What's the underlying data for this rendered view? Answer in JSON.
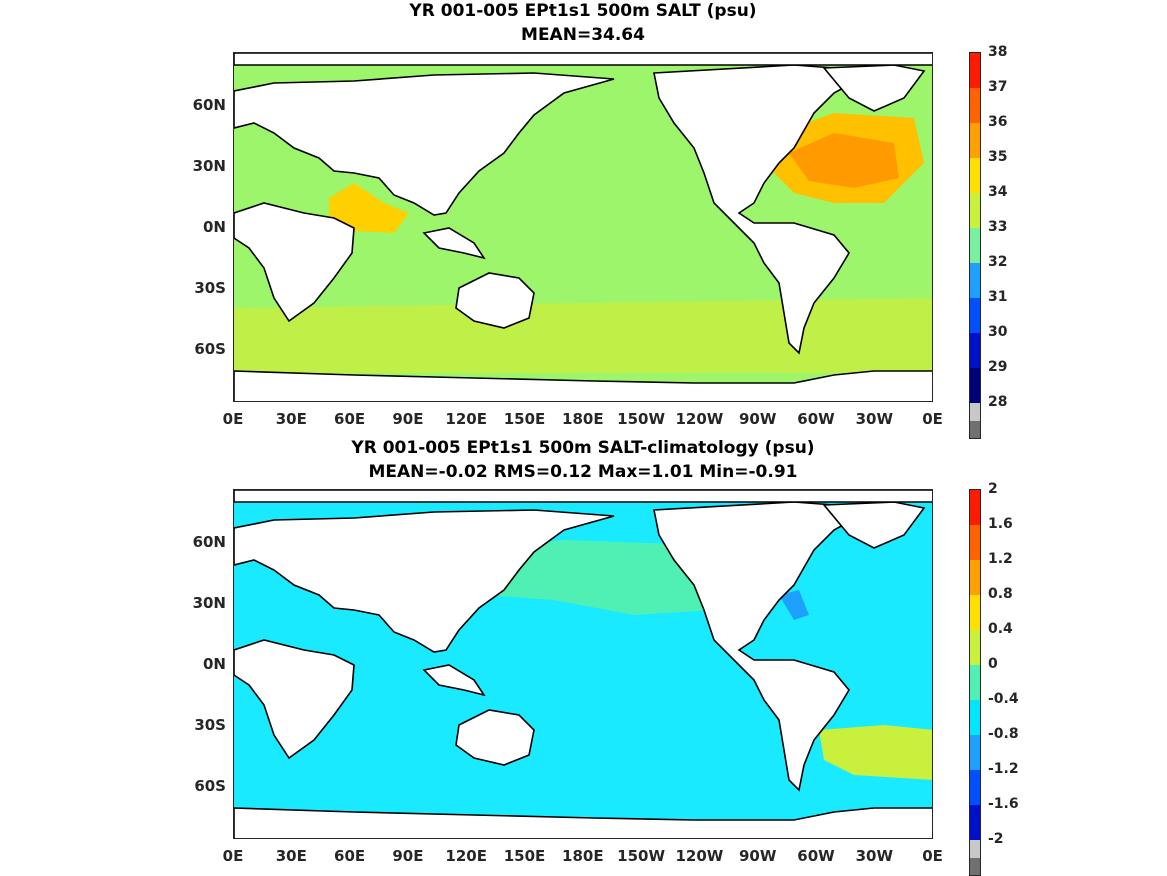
{
  "panels": [
    {
      "title_line1": "YR 001-005 EPt1s1 500m SALT (psu)",
      "title_line2": "MEAN=34.64",
      "colorbar": {
        "labels": [
          "38",
          "37",
          "36",
          "35",
          "34",
          "33",
          "32",
          "31",
          "30",
          "29",
          "28"
        ],
        "colors": [
          "#ff1a00",
          "#ff6400",
          "#ffa000",
          "#ffe000",
          "#c8f03c",
          "#78f0a0",
          "#1ea0ff",
          "#0050ff",
          "#0010c8",
          "#00007a",
          "#c8c8c8",
          "#707070"
        ]
      },
      "ocean_color": "#9cf56a",
      "features": [
        {
          "name": "north-atlantic-high-salinity",
          "color": "#ffc000"
        },
        {
          "name": "north-atlantic-core",
          "color": "#ff9a00"
        },
        {
          "name": "arabian-sea-high-salinity",
          "color": "#ffd000"
        },
        {
          "name": "southern-band",
          "color": "#c0f048"
        }
      ]
    },
    {
      "title_line1": "YR 001-005 EPt1s1 500m SALT-climatology (psu)",
      "title_line2": "MEAN=-0.02   RMS=0.12   Max=1.01   Min=-0.91",
      "colorbar": {
        "labels": [
          "2",
          "1.6",
          "1.2",
          "0.8",
          "0.4",
          "0",
          "-0.4",
          "-0.8",
          "-1.2",
          "-1.6",
          "-2"
        ],
        "colors": [
          "#ff1a00",
          "#ff6400",
          "#ffa000",
          "#ffe000",
          "#c8f03c",
          "#50f0b4",
          "#00e6ff",
          "#1ea0ff",
          "#0050ff",
          "#0010c8",
          "#c8c8c8",
          "#707070"
        ]
      },
      "ocean_color": "#19eaff",
      "features": [
        {
          "name": "north-pacific-positive",
          "color": "#50f0b4"
        },
        {
          "name": "south-atlantic-positive",
          "color": "#c8f03c"
        },
        {
          "name": "gulf-stream-negative",
          "color": "#1ea0ff"
        }
      ]
    }
  ],
  "lat_labels": [
    "60N",
    "30N",
    "0N",
    "30S",
    "60S"
  ],
  "lon_labels": [
    "0E",
    "30E",
    "60E",
    "90E",
    "120E",
    "150E",
    "180E",
    "150W",
    "120W",
    "90W",
    "60W",
    "30W",
    "0E"
  ]
}
